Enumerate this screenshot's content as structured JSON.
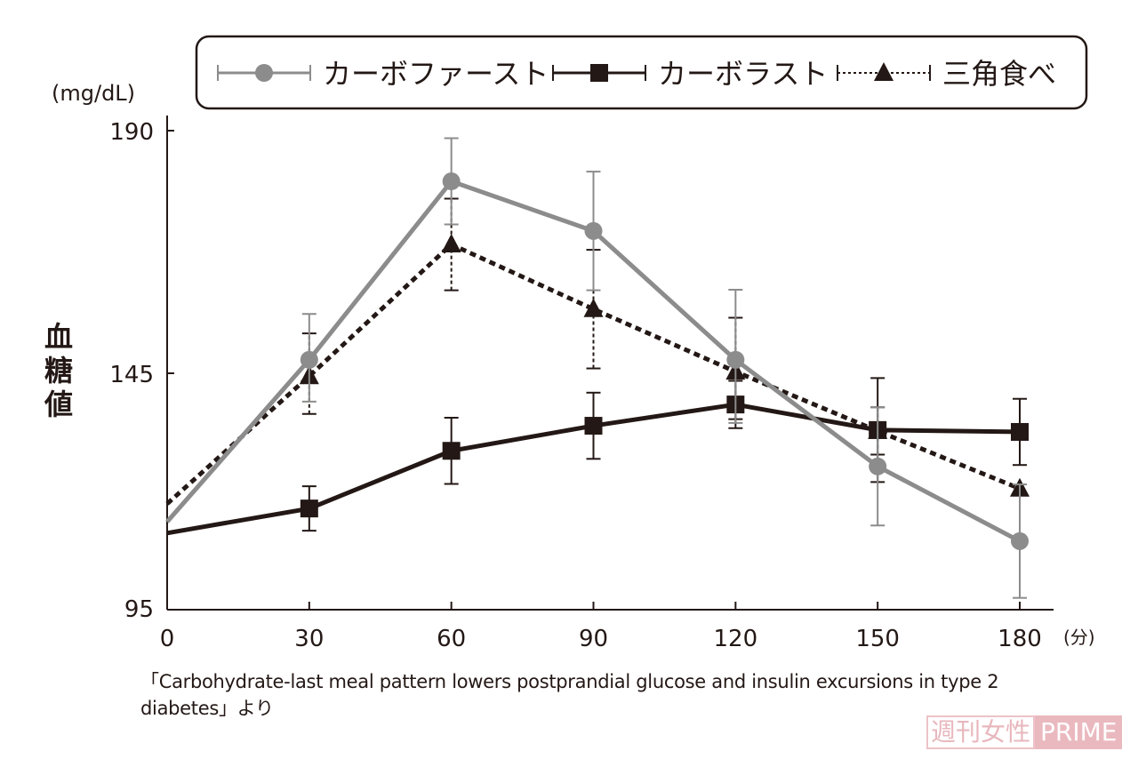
{
  "chart_data": {
    "type": "line",
    "x": [
      0,
      30,
      60,
      90,
      120,
      150,
      180
    ],
    "xlabel": "(分)",
    "ylabel": "血糖値",
    "yunit": "(mg/dL)",
    "yticks": [
      95,
      145,
      190
    ],
    "ylim": [
      95,
      190
    ],
    "xlim": [
      0,
      180
    ],
    "grid": false,
    "legend_position": "top",
    "series": [
      {
        "name": "カーボファースト",
        "color": "#8c8c8c",
        "marker": "circle",
        "line": "solid",
        "values": [
          113.6,
          147.5,
          180.6,
          171.4,
          147.5,
          125.3,
          109.5
        ],
        "errors": [
          0,
          8.5,
          8,
          11,
          13,
          12.5,
          12
        ]
      },
      {
        "name": "カーボラスト",
        "color": "#231815",
        "marker": "square",
        "line": "solid",
        "values": [
          111.2,
          116.4,
          128.6,
          133.9,
          138.4,
          133.0,
          132.6
        ],
        "errors": [
          0,
          4.7,
          7,
          7,
          5,
          11,
          7
        ]
      },
      {
        "name": "三角食べ",
        "color": "#231815",
        "marker": "triangle",
        "line": "dotted",
        "values": [
          117.4,
          144.4,
          168.9,
          156.9,
          145.3,
          132.8,
          120.6
        ],
        "errors": [
          0,
          8,
          8.5,
          11,
          10,
          5,
          0
        ]
      }
    ]
  },
  "source": "「Carbohydrate-last meal pattern lowers postprandial glucose and insulin excursions in type 2 diabetes」より",
  "watermark": {
    "left": "週刊女性",
    "right": "PRIME"
  }
}
